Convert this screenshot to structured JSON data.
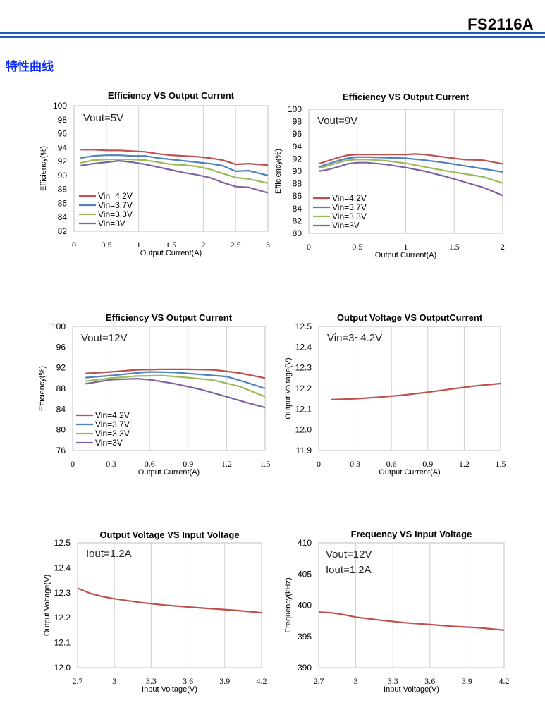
{
  "header": {
    "doc_title": "FS2116A",
    "section_title": "特性曲线"
  },
  "colors": {
    "rule": "#1f5fbf",
    "section": "#0a2bff",
    "grid": "#d0d0d0",
    "s1": "#c0504d",
    "s2": "#4f81bd",
    "s3": "#9bbb59",
    "s4": "#8064a2"
  },
  "chart_data": [
    {
      "type": "line",
      "title": "Efficiency VS Output Current",
      "annotation": [
        "Vout=5V"
      ],
      "xlabel": "Output Current(A)",
      "ylabel": "Efficiency(%)",
      "xlim": [
        0,
        3
      ],
      "ylim": [
        82,
        100
      ],
      "xticks": [
        "0",
        "0.5",
        "1",
        "1.5",
        "2",
        "2.5",
        "3"
      ],
      "yticks": [
        "82",
        "84",
        "86",
        "88",
        "90",
        "92",
        "94",
        "96",
        "98",
        "100"
      ],
      "grid": "vertical",
      "legend": "bottom-left",
      "series": [
        {
          "name": "Vin=4.2V",
          "color": "#c0504d",
          "x": [
            0.1,
            0.3,
            0.5,
            0.7,
            0.9,
            1.1,
            1.3,
            1.5,
            1.7,
            1.9,
            2.1,
            2.3,
            2.5,
            2.7,
            3.0
          ],
          "y": [
            93.7,
            93.7,
            93.6,
            93.6,
            93.5,
            93.4,
            93.1,
            92.9,
            92.8,
            92.7,
            92.5,
            92.2,
            91.6,
            91.7,
            91.5
          ]
        },
        {
          "name": "Vin=3.7V",
          "color": "#4f81bd",
          "x": [
            0.1,
            0.3,
            0.5,
            0.7,
            0.9,
            1.1,
            1.3,
            1.5,
            1.7,
            1.9,
            2.1,
            2.3,
            2.5,
            2.7,
            3.0
          ],
          "y": [
            92.5,
            92.8,
            92.9,
            92.9,
            92.8,
            92.8,
            92.5,
            92.3,
            92.1,
            91.9,
            91.7,
            91.4,
            90.6,
            90.7,
            90.0
          ]
        },
        {
          "name": "Vin=3.3V",
          "color": "#9bbb59",
          "x": [
            0.1,
            0.3,
            0.5,
            0.7,
            0.9,
            1.1,
            1.3,
            1.5,
            1.7,
            1.9,
            2.1,
            2.3,
            2.5,
            2.7,
            3.0
          ],
          "y": [
            91.8,
            92.2,
            92.3,
            92.3,
            92.3,
            92.2,
            91.9,
            91.6,
            91.5,
            91.3,
            90.9,
            90.3,
            89.7,
            89.5,
            88.9
          ]
        },
        {
          "name": "Vin=3V",
          "color": "#8064a2",
          "x": [
            0.1,
            0.3,
            0.5,
            0.7,
            0.9,
            1.1,
            1.3,
            1.5,
            1.7,
            1.9,
            2.1,
            2.3,
            2.5,
            2.7,
            3.0
          ],
          "y": [
            91.4,
            91.7,
            91.9,
            92.1,
            91.9,
            91.6,
            91.2,
            90.8,
            90.4,
            90.1,
            89.7,
            89.0,
            88.4,
            88.3,
            87.5
          ]
        }
      ]
    },
    {
      "type": "line",
      "title": "Efficiency VS Output Current",
      "annotation": [
        "Vout=9V"
      ],
      "xlabel": "Output Current(A)",
      "ylabel": "Efficiency(%)",
      "xlim": [
        0,
        2
      ],
      "ylim": [
        80,
        100
      ],
      "xticks": [
        "0",
        "0.5",
        "1",
        "1.5",
        "2"
      ],
      "yticks": [
        "80",
        "82",
        "84",
        "86",
        "88",
        "90",
        "92",
        "94",
        "96",
        "98",
        "100"
      ],
      "grid": "vertical",
      "legend": "bottom-left",
      "series": [
        {
          "name": "Vin=4.2V",
          "color": "#c0504d",
          "x": [
            0.1,
            0.2,
            0.3,
            0.4,
            0.5,
            0.6,
            0.8,
            1.0,
            1.1,
            1.2,
            1.4,
            1.6,
            1.8,
            2.0
          ],
          "y": [
            91.2,
            91.7,
            92.2,
            92.6,
            92.7,
            92.7,
            92.7,
            92.7,
            92.8,
            92.7,
            92.3,
            91.9,
            91.8,
            91.2
          ]
        },
        {
          "name": "Vin=3.7V",
          "color": "#4f81bd",
          "x": [
            0.1,
            0.2,
            0.3,
            0.4,
            0.5,
            0.6,
            0.8,
            1.0,
            1.2,
            1.4,
            1.6,
            1.8,
            2.0
          ],
          "y": [
            90.7,
            91.2,
            91.7,
            92.1,
            92.3,
            92.3,
            92.2,
            92.1,
            91.8,
            91.4,
            90.9,
            90.4,
            89.9
          ]
        },
        {
          "name": "Vin=3.3V",
          "color": "#9bbb59",
          "x": [
            0.1,
            0.2,
            0.3,
            0.4,
            0.5,
            0.6,
            0.8,
            1.0,
            1.2,
            1.4,
            1.6,
            1.8,
            2.0
          ],
          "y": [
            90.5,
            90.9,
            91.4,
            91.8,
            91.9,
            91.9,
            91.7,
            91.3,
            90.7,
            90.1,
            89.6,
            89.1,
            88.1
          ]
        },
        {
          "name": "Vin=3V",
          "color": "#8064a2",
          "x": [
            0.1,
            0.2,
            0.3,
            0.4,
            0.5,
            0.6,
            0.8,
            1.0,
            1.2,
            1.4,
            1.6,
            1.8,
            2.0
          ],
          "y": [
            90.0,
            90.3,
            90.7,
            91.2,
            91.4,
            91.4,
            91.1,
            90.6,
            90.0,
            89.2,
            88.3,
            87.4,
            86.1
          ]
        }
      ]
    },
    {
      "type": "line",
      "title": "Efficiency VS Output Current",
      "annotation": [
        "Vout=12V"
      ],
      "xlabel": "Output Current(A)",
      "ylabel": "Efficiency(%)",
      "xlim": [
        0,
        1.5
      ],
      "ylim": [
        76,
        100
      ],
      "xticks": [
        "0",
        "0.3",
        "0.6",
        "0.9",
        "1.2",
        "1.5"
      ],
      "yticks": [
        "76",
        "80",
        "84",
        "88",
        "92",
        "96",
        "100"
      ],
      "grid": "vertical",
      "legend": "bottom-left",
      "series": [
        {
          "name": "Vin=4.2V",
          "color": "#c0504d",
          "x": [
            0.1,
            0.3,
            0.5,
            0.7,
            0.9,
            1.1,
            1.3,
            1.5
          ],
          "y": [
            90.9,
            91.2,
            91.6,
            91.7,
            91.7,
            91.6,
            91.0,
            90.0
          ]
        },
        {
          "name": "Vin=3.7V",
          "color": "#4f81bd",
          "x": [
            0.1,
            0.3,
            0.5,
            0.6,
            0.8,
            1.0,
            1.2,
            1.35,
            1.5
          ],
          "y": [
            90.1,
            90.5,
            91.0,
            91.2,
            91.1,
            90.7,
            90.3,
            89.2,
            88.0
          ]
        },
        {
          "name": "Vin=3.3V",
          "color": "#9bbb59",
          "x": [
            0.1,
            0.3,
            0.5,
            0.7,
            0.9,
            1.1,
            1.3,
            1.5
          ],
          "y": [
            89.4,
            90.0,
            90.4,
            90.5,
            90.1,
            89.6,
            88.4,
            86.4
          ]
        },
        {
          "name": "Vin=3V",
          "color": "#8064a2",
          "x": [
            0.1,
            0.3,
            0.5,
            0.6,
            0.8,
            1.0,
            1.2,
            1.35,
            1.5
          ],
          "y": [
            88.9,
            89.7,
            89.9,
            89.7,
            88.9,
            87.8,
            86.4,
            85.3,
            84.3
          ]
        }
      ]
    },
    {
      "type": "line",
      "title": "Output Voltage VS OutputCurrent",
      "annotation": [
        "Vin=3~4.2V"
      ],
      "xlabel": "Output Current(A)",
      "ylabel": "Output Voltage(V)",
      "xlim": [
        0,
        1.5
      ],
      "ylim": [
        11.9,
        12.5
      ],
      "xticks": [
        "0",
        "0.3",
        "0.6",
        "0.9",
        "1.2",
        "1.5"
      ],
      "yticks": [
        "11.9",
        "12.0",
        "12.1",
        "12.2",
        "12.3",
        "12.4",
        "12.5"
      ],
      "grid": "vertical",
      "series": [
        {
          "name": "",
          "color": "#c0504d",
          "x": [
            0.1,
            0.3,
            0.5,
            0.7,
            0.9,
            1.1,
            1.3,
            1.5
          ],
          "y": [
            12.146,
            12.15,
            12.158,
            12.168,
            12.182,
            12.198,
            12.213,
            12.224
          ]
        }
      ]
    },
    {
      "type": "line",
      "title": "Output Voltage VS Input Voltage",
      "annotation": [
        "Iout=1.2A"
      ],
      "xlabel": "Input Voltage(V)",
      "ylabel": "Output Voltage(V)",
      "xlim": [
        2.7,
        4.2
      ],
      "ylim": [
        12.0,
        12.5
      ],
      "xticks": [
        "2.7",
        "3",
        "3.3",
        "3.6",
        "3.9",
        "4.2"
      ],
      "yticks": [
        "12.0",
        "12.1",
        "12.2",
        "12.3",
        "12.4",
        "12.5"
      ],
      "grid": "vertical",
      "series": [
        {
          "name": "",
          "color": "#c0504d",
          "x": [
            2.7,
            2.8,
            2.9,
            3.0,
            3.2,
            3.4,
            3.6,
            3.8,
            4.0,
            4.2
          ],
          "y": [
            12.318,
            12.298,
            12.285,
            12.276,
            12.262,
            12.251,
            12.243,
            12.236,
            12.229,
            12.22
          ]
        }
      ]
    },
    {
      "type": "line",
      "title": "Frequency VS Input Voltage",
      "annotation": [
        "Vout=12V",
        "Iout=1.2A"
      ],
      "xlabel": "Input Voltage(V)",
      "ylabel": "Frequency(kHz)",
      "xlim": [
        2.7,
        4.2
      ],
      "ylim": [
        390,
        410
      ],
      "xticks": [
        "2.7",
        "3",
        "3.3",
        "3.6",
        "3.9",
        "4.2"
      ],
      "yticks": [
        "390",
        "395",
        "400",
        "405",
        "410"
      ],
      "grid": "vertical",
      "series": [
        {
          "name": "",
          "color": "#c0504d",
          "x": [
            2.7,
            2.8,
            2.9,
            3.0,
            3.2,
            3.4,
            3.6,
            3.8,
            4.0,
            4.2
          ],
          "y": [
            398.9,
            398.8,
            398.5,
            398.1,
            397.6,
            397.2,
            396.9,
            396.6,
            396.4,
            396.0
          ]
        }
      ]
    }
  ]
}
